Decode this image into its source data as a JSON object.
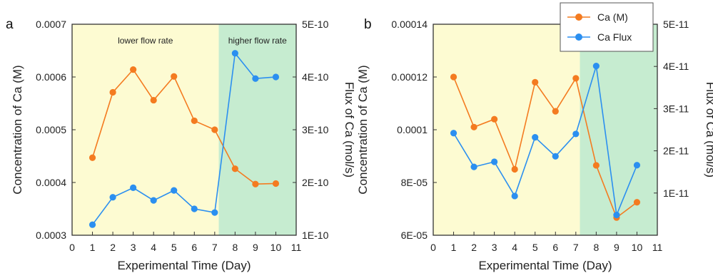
{
  "colors": {
    "ca_m": "#f47b20",
    "ca_flux": "#2b8ff0",
    "low_region": "#fdfbd2",
    "high_region": "#c6ecd0",
    "axis": "#333333"
  },
  "chart_data": [
    {
      "type": "line",
      "panel_label": "a",
      "xlabel": "Experimental Time (Day)",
      "ylabel_left": "Concentration of Ca (M)",
      "ylabel_right": "Flux of Ca (mol/s)",
      "xlim": [
        0,
        11
      ],
      "x_ticks": [
        "0",
        "1",
        "2",
        "3",
        "4",
        "5",
        "6",
        "7",
        "8",
        "9",
        "10",
        "11"
      ],
      "ylim_left": [
        0.0003,
        0.0007
      ],
      "y_left_ticks": [
        {
          "value": 0.0003,
          "label": "0.0003"
        },
        {
          "value": 0.0004,
          "label": "0.0004"
        },
        {
          "value": 0.0005,
          "label": "0.0005"
        },
        {
          "value": 0.0006,
          "label": "0.0006"
        },
        {
          "value": 0.0007,
          "label": "0.0007"
        }
      ],
      "ylim_right": [
        1e-10,
        5e-10
      ],
      "y_right_ticks": [
        {
          "value": 1e-10,
          "label": "1E-10"
        },
        {
          "value": 2e-10,
          "label": "2E-10"
        },
        {
          "value": 3e-10,
          "label": "3E-10"
        },
        {
          "value": 4e-10,
          "label": "4E-10"
        },
        {
          "value": 5e-10,
          "label": "5E-10"
        }
      ],
      "regions": [
        {
          "from": 0,
          "to": 7.2,
          "label": "lower flow rate",
          "color": "#fdfbd2"
        },
        {
          "from": 7.2,
          "to": 11,
          "label": "higher flow rate",
          "color": "#c6ecd0"
        }
      ],
      "x": [
        1,
        2,
        3,
        4,
        5,
        6,
        7,
        8,
        9,
        10
      ],
      "series": [
        {
          "name": "Ca (M)",
          "axis": "left",
          "color": "#f47b20",
          "values": [
            0.000447,
            0.000571,
            0.000614,
            0.000556,
            0.000601,
            0.000517,
            0.0005,
            0.000426,
            0.000397,
            0.000398
          ]
        },
        {
          "name": "Ca Flux",
          "axis": "right",
          "color": "#2b8ff0",
          "values": [
            1.2e-10,
            1.72e-10,
            1.9e-10,
            1.66e-10,
            1.85e-10,
            1.5e-10,
            1.43e-10,
            4.45e-10,
            3.97e-10,
            4e-10
          ]
        }
      ]
    },
    {
      "type": "line",
      "panel_label": "b",
      "xlabel": "Experimental Time (Day)",
      "ylabel_left": "Concentration of Ca (M)",
      "ylabel_right": "Flux of Ca (mol/s)",
      "xlim": [
        0,
        11
      ],
      "x_ticks": [
        "0",
        "1",
        "2",
        "3",
        "4",
        "5",
        "6",
        "7",
        "8",
        "9",
        "10",
        "11"
      ],
      "ylim_left": [
        6e-05,
        0.00014
      ],
      "y_left_ticks": [
        {
          "value": 6e-05,
          "label": "6E-05"
        },
        {
          "value": 8e-05,
          "label": "8E-05"
        },
        {
          "value": 0.0001,
          "label": "0.0001"
        },
        {
          "value": 0.00012,
          "label": "0.00012"
        },
        {
          "value": 0.00014,
          "label": "0.00014"
        }
      ],
      "ylim_right": [
        0,
        5e-11
      ],
      "y_right_ticks": [
        {
          "value": 1e-11,
          "label": "1E-11"
        },
        {
          "value": 2e-11,
          "label": "2E-11"
        },
        {
          "value": 3e-11,
          "label": "3E-11"
        },
        {
          "value": 4e-11,
          "label": "4E-11"
        },
        {
          "value": 5e-11,
          "label": "5E-11"
        }
      ],
      "regions": [
        {
          "from": 0,
          "to": 7.2,
          "label": "",
          "color": "#fdfbd2"
        },
        {
          "from": 7.2,
          "to": 11,
          "label": "",
          "color": "#c6ecd0"
        }
      ],
      "x": [
        1,
        2,
        3,
        4,
        5,
        6,
        7,
        8,
        9,
        10
      ],
      "series": [
        {
          "name": "Ca (M)",
          "axis": "left",
          "color": "#f47b20",
          "values": [
            0.00012,
            0.000101,
            0.000104,
            8.5e-05,
            0.000118,
            0.000107,
            0.0001195,
            8.65e-05,
            6.67e-05,
            7.25e-05
          ]
        },
        {
          "name": "Ca Flux",
          "axis": "right",
          "color": "#2b8ff0",
          "values": [
            2.42e-11,
            1.62e-11,
            1.74e-11,
            9.3e-12,
            2.32e-11,
            1.87e-11,
            2.4e-11,
            4.01e-11,
            4.8e-12,
            1.66e-11
          ]
        }
      ],
      "legend": {
        "placement": "top-right",
        "entries": [
          {
            "label": "Ca (M)",
            "color": "#f47b20"
          },
          {
            "label": "Ca Flux",
            "color": "#2b8ff0"
          }
        ]
      }
    }
  ]
}
